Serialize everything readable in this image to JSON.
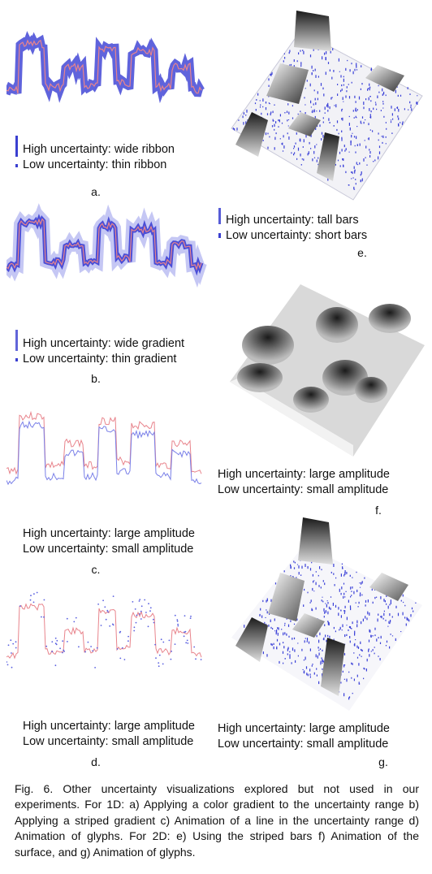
{
  "panels": {
    "a": {
      "label": "a.",
      "high": "High uncertainty: wide ribbon",
      "low": "Low uncertainty: thin ribbon"
    },
    "b": {
      "label": "b.",
      "high": "High uncertainty:  wide  gradient",
      "low": "Low uncertainty: thin gradient"
    },
    "c": {
      "label": "c.",
      "high": "High uncertainty:  large  amplitude",
      "low": "Low uncertainty: small amplitude"
    },
    "d": {
      "label": "d.",
      "high": "High uncertainty: large amplitude",
      "low": "Low uncertainty: small amplitude"
    },
    "e": {
      "label": "e.",
      "high": "High uncertainty: tall bars",
      "low": "Low uncertainty: short bars"
    },
    "f": {
      "label": "f.",
      "high": "High uncertainty:  large  amplitude",
      "low": "Low uncertainty: small amplitude"
    },
    "g": {
      "label": "g.",
      "high": "High uncertainty: large amplitude",
      "low": "Low uncertainty: small amplitude"
    }
  },
  "caption": "Fig. 6. Other uncertainty visualizations explored but not used in our experiments. For 1D: a) Applying a color gradient to the uncertainty range b) Applying a striped gradient c) Animation of a line in the uncertainty range d) Animation of glyphs. For 2D:  e) Using the striped bars f) Animation of the surface, and g) Animation of glyphs.",
  "colors": {
    "line": "#e8848c",
    "uncertainty": "#2a2fd0",
    "glyph": "#4a55e0"
  }
}
